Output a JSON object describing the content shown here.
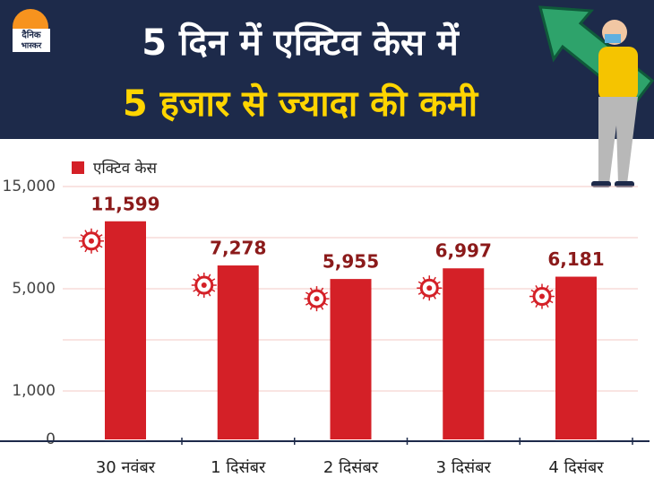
{
  "logo": [
    "दैनिक",
    "भास्कर"
  ],
  "chart_data": {
    "type": "bar",
    "title": "5 दिन में एक्टिव केस में",
    "subtitle": "5 हजार से ज्यादा की कमी",
    "categories": [
      "30 नवंबर",
      "1 दिसंबर",
      "2 दिसंबर",
      "3 दिसंबर",
      "4 दिसंबर"
    ],
    "series": [
      {
        "name": "एक्टिव केस",
        "color": "#d42027",
        "values": [
          11599,
          7278,
          5955,
          6997,
          6181
        ],
        "value_labels": [
          "11,599",
          "7,278",
          "5,955",
          "6,997",
          "6,181"
        ]
      }
    ],
    "ylim": [
      0,
      15000
    ],
    "yticks": [
      0,
      {
        "value": 1000,
        "label": "1,000"
      },
      {
        "value": 5000,
        "label": "5,000"
      },
      {
        "value": 15000,
        "label": "15,000"
      }
    ],
    "grid": true,
    "legend": "top-left"
  }
}
